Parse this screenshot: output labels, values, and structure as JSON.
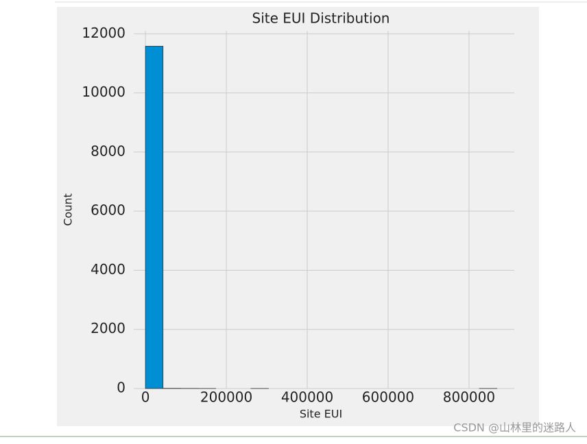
{
  "chart_data": {
    "type": "histogram",
    "title": "Site EUI Distribution",
    "x_label": "Site EUI",
    "y_label": "Count",
    "bins": [
      0,
      43450,
      86900,
      130350,
      173800,
      217250,
      260700,
      304150,
      347600,
      391050,
      434500,
      477950,
      521400,
      564850,
      608300,
      651750,
      695200,
      738650,
      782100,
      825550,
      869000
    ],
    "counts": [
      11580,
      6,
      3,
      1,
      0,
      0,
      1,
      0,
      0,
      0,
      0,
      0,
      0,
      0,
      0,
      0,
      0,
      0,
      0,
      1
    ],
    "color": "#008fd5",
    "edgecolor": "#333333",
    "xlim": [
      -29000,
      912000
    ],
    "ylim": [
      0,
      12100
    ],
    "xticks": [
      0,
      200000,
      400000,
      600000,
      800000
    ],
    "yticks": [
      0,
      2000,
      4000,
      6000,
      8000,
      10000,
      12000
    ],
    "grid": true
  },
  "watermark": "CSDN @山林里的迷路人"
}
